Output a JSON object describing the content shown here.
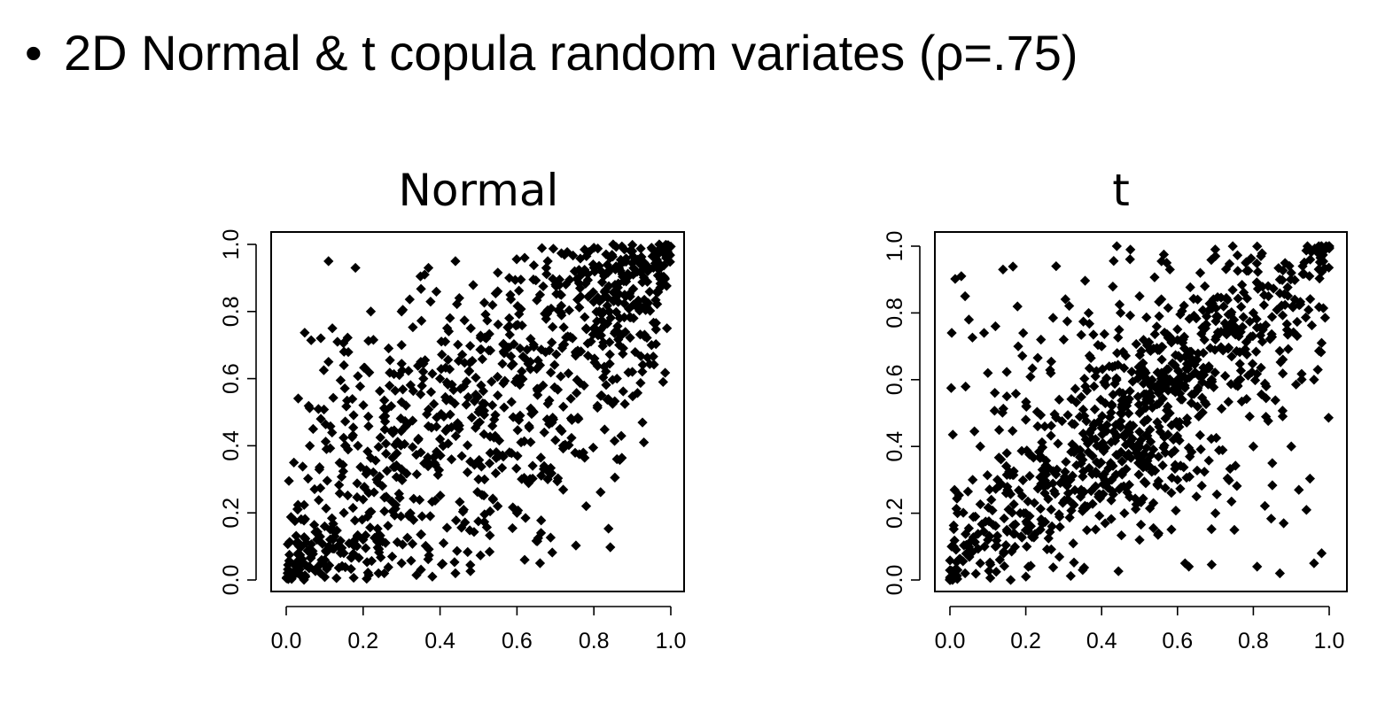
{
  "slide": {
    "bullet": "•",
    "title": "2D Normal & t copula random variates (ρ=.75)"
  },
  "colors": {
    "background": "#ffffff",
    "points": "#000000",
    "axes": "#000000"
  },
  "chart_data": [
    {
      "id": "normal",
      "type": "scatter",
      "title": "Normal",
      "xlabel": "",
      "ylabel": "",
      "xlim": [
        0,
        1
      ],
      "ylim": [
        0,
        1
      ],
      "xticks": [
        "0.0",
        "0.2",
        "0.4",
        "0.6",
        "0.8",
        "1.0"
      ],
      "yticks": [
        "0.0",
        "0.2",
        "0.4",
        "0.6",
        "0.8",
        "1.0"
      ],
      "copula": "gaussian",
      "rho": 0.75,
      "n": 1000,
      "points": [
        [
          0.02,
          0.02
        ],
        [
          0.03,
          0.05
        ],
        [
          0.05,
          0.01
        ],
        [
          0.04,
          0.1
        ],
        [
          0.06,
          0.04
        ],
        [
          0.08,
          0.12
        ],
        [
          0.1,
          0.06
        ],
        [
          0.12,
          0.15
        ],
        [
          0.03,
          0.21
        ],
        [
          0.11,
          0.95
        ],
        [
          0.18,
          0.93
        ],
        [
          0.12,
          0.75
        ],
        [
          0.36,
          0.91
        ],
        [
          0.44,
          0.95
        ],
        [
          0.38,
          0.01
        ],
        [
          0.44,
          0.02
        ],
        [
          0.62,
          0.06
        ],
        [
          0.66,
          0.05
        ],
        [
          0.78,
          0.22
        ],
        [
          0.86,
          0.36
        ],
        [
          0.93,
          0.41
        ],
        [
          0.98,
          0.59
        ],
        [
          0.99,
          0.75
        ],
        [
          0.97,
          1.0
        ],
        [
          0.99,
          0.99
        ],
        [
          0.02,
          0.35
        ],
        [
          0.07,
          0.45
        ],
        [
          0.09,
          0.48
        ],
        [
          0.15,
          0.64
        ],
        [
          0.11,
          0.65
        ],
        [
          0.22,
          0.8
        ],
        [
          0.3,
          0.8
        ],
        [
          0.45,
          0.84
        ],
        [
          0.55,
          0.86
        ],
        [
          0.58,
          0.9
        ],
        [
          0.62,
          0.96
        ],
        [
          0.68,
          0.95
        ],
        [
          0.8,
          0.99
        ],
        [
          0.85,
          1.0
        ],
        [
          0.9,
          0.98
        ],
        [
          0.95,
          0.99
        ],
        [
          0.94,
          0.92
        ],
        [
          0.88,
          0.85
        ],
        [
          0.84,
          0.8
        ],
        [
          0.78,
          0.75
        ],
        [
          0.72,
          0.7
        ],
        [
          0.66,
          0.64
        ],
        [
          0.6,
          0.6
        ],
        [
          0.55,
          0.55
        ],
        [
          0.5,
          0.5
        ],
        [
          0.45,
          0.46
        ],
        [
          0.4,
          0.42
        ],
        [
          0.35,
          0.38
        ],
        [
          0.3,
          0.33
        ],
        [
          0.25,
          0.28
        ],
        [
          0.2,
          0.24
        ],
        [
          0.15,
          0.2
        ],
        [
          0.1,
          0.16
        ],
        [
          0.24,
          0.02
        ],
        [
          0.3,
          0.05
        ],
        [
          0.2,
          0.12
        ],
        [
          0.5,
          0.3
        ],
        [
          0.55,
          0.22
        ],
        [
          0.6,
          0.2
        ],
        [
          0.68,
          0.3
        ],
        [
          0.72,
          0.4
        ],
        [
          0.76,
          0.48
        ],
        [
          0.82,
          0.55
        ],
        [
          0.86,
          0.6
        ],
        [
          0.9,
          0.62
        ],
        [
          0.95,
          0.7
        ],
        [
          0.4,
          0.6
        ],
        [
          0.35,
          0.65
        ],
        [
          0.3,
          0.7
        ],
        [
          0.48,
          0.75
        ],
        [
          0.52,
          0.72
        ],
        [
          0.58,
          0.78
        ],
        [
          0.66,
          0.85
        ],
        [
          0.7,
          0.88
        ],
        [
          0.75,
          0.92
        ]
      ]
    },
    {
      "id": "t",
      "type": "scatter",
      "title": "t",
      "xlabel": "",
      "ylabel": "",
      "xlim": [
        0,
        1
      ],
      "ylim": [
        0,
        1
      ],
      "xticks": [
        "0.0",
        "0.2",
        "0.4",
        "0.6",
        "0.8",
        "1.0"
      ],
      "yticks": [
        "0.0",
        "0.2",
        "0.4",
        "0.6",
        "0.8",
        "1.0"
      ],
      "copula": "student-t",
      "rho": 0.75,
      "n": 1000,
      "points": [
        [
          0.01,
          0.01
        ],
        [
          0.02,
          0.03
        ],
        [
          0.04,
          0.02
        ],
        [
          0.05,
          0.08
        ],
        [
          0.08,
          0.05
        ],
        [
          0.1,
          0.12
        ],
        [
          0.12,
          0.1
        ],
        [
          0.15,
          0.15
        ],
        [
          0.03,
          0.91
        ],
        [
          0.04,
          0.85
        ],
        [
          0.05,
          0.78
        ],
        [
          0.14,
          0.93
        ],
        [
          0.28,
          0.94
        ],
        [
          0.44,
          1.0
        ],
        [
          0.98,
          1.0
        ],
        [
          0.99,
          0.99
        ],
        [
          0.97,
          0.98
        ],
        [
          0.95,
          0.96
        ],
        [
          0.93,
          0.94
        ],
        [
          0.9,
          0.92
        ],
        [
          0.87,
          0.9
        ],
        [
          0.84,
          0.85
        ],
        [
          0.8,
          0.8
        ],
        [
          0.75,
          0.76
        ],
        [
          0.7,
          0.72
        ],
        [
          0.65,
          0.66
        ],
        [
          0.6,
          0.6
        ],
        [
          0.55,
          0.56
        ],
        [
          0.5,
          0.5
        ],
        [
          0.45,
          0.46
        ],
        [
          0.4,
          0.4
        ],
        [
          0.35,
          0.36
        ],
        [
          0.3,
          0.3
        ],
        [
          0.25,
          0.26
        ],
        [
          0.2,
          0.2
        ],
        [
          0.35,
          0.03
        ],
        [
          0.62,
          0.05
        ],
        [
          0.63,
          0.04
        ],
        [
          0.81,
          0.04
        ],
        [
          0.87,
          0.02
        ],
        [
          0.96,
          0.05
        ],
        [
          0.98,
          0.08
        ],
        [
          0.92,
          0.27
        ],
        [
          0.94,
          0.21
        ],
        [
          0.88,
          0.17
        ],
        [
          0.98,
          0.71
        ],
        [
          0.97,
          0.63
        ],
        [
          0.96,
          0.6
        ],
        [
          0.1,
          0.62
        ],
        [
          0.09,
          0.74
        ],
        [
          0.12,
          0.76
        ],
        [
          0.15,
          0.55
        ],
        [
          0.02,
          0.2
        ],
        [
          0.06,
          0.3
        ],
        [
          0.08,
          0.4
        ],
        [
          0.18,
          0.7
        ],
        [
          0.24,
          0.72
        ],
        [
          0.3,
          0.72
        ],
        [
          0.4,
          0.7
        ],
        [
          0.45,
          0.8
        ],
        [
          0.5,
          0.85
        ],
        [
          0.58,
          0.93
        ],
        [
          0.66,
          0.92
        ],
        [
          0.7,
          0.97
        ],
        [
          0.78,
          0.95
        ],
        [
          0.82,
          0.97
        ],
        [
          0.6,
          0.3
        ],
        [
          0.65,
          0.25
        ],
        [
          0.7,
          0.2
        ],
        [
          0.75,
          0.15
        ],
        [
          0.55,
          0.14
        ],
        [
          0.5,
          0.12
        ],
        [
          0.46,
          0.2
        ],
        [
          0.8,
          0.4
        ],
        [
          0.85,
          0.35
        ],
        [
          0.9,
          0.4
        ],
        [
          0.2,
          0.48
        ],
        [
          0.25,
          0.46
        ],
        [
          0.15,
          0.38
        ],
        [
          0.38,
          0.58
        ],
        [
          0.42,
          0.64
        ]
      ]
    }
  ]
}
